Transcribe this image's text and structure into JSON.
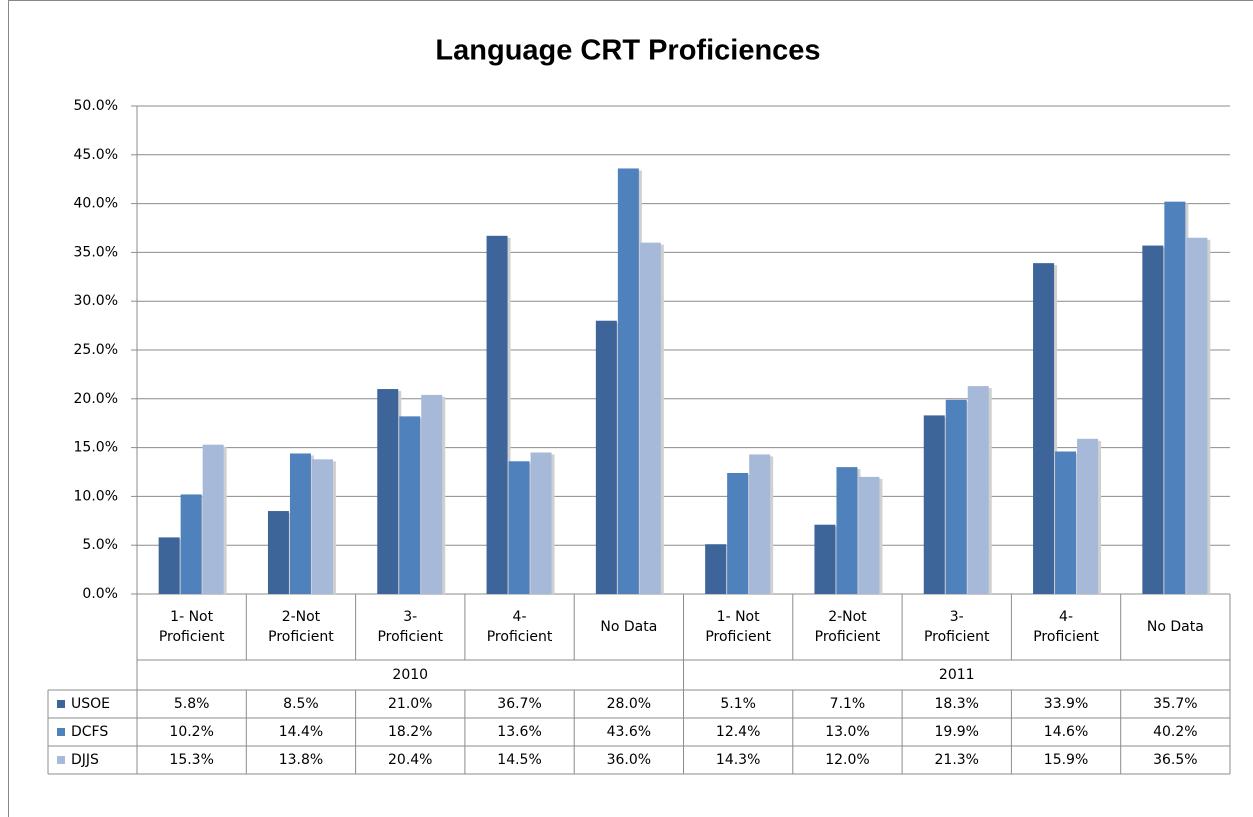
{
  "chart_data": {
    "type": "bar",
    "title": "Language CRT Proficiences",
    "groups": [
      "2010",
      "2011"
    ],
    "categories": [
      "1- Not\nProficient",
      "2-Not\nProficient",
      "3-\nProficient",
      "4-\nProficient",
      "No Data",
      "1- Not\nProficient",
      "2-Not\nProficient",
      "3-\nProficient",
      "4-\nProficient",
      "No Data"
    ],
    "series": [
      {
        "name": "USOE",
        "color": "#3e6599",
        "values": [
          5.8,
          8.5,
          21.0,
          36.7,
          28.0,
          5.1,
          7.1,
          18.3,
          33.9,
          35.7
        ],
        "value_labels": [
          "5.8%",
          "8.5%",
          "21.0%",
          "36.7%",
          "28.0%",
          "5.1%",
          "7.1%",
          "18.3%",
          "33.9%",
          "35.7%"
        ]
      },
      {
        "name": "DCFS",
        "color": "#4f81bd",
        "values": [
          10.2,
          14.4,
          18.2,
          13.6,
          43.6,
          12.4,
          13.0,
          19.9,
          14.6,
          40.2
        ],
        "value_labels": [
          "10.2%",
          "14.4%",
          "18.2%",
          "13.6%",
          "43.6%",
          "12.4%",
          "13.0%",
          "19.9%",
          "14.6%",
          "40.2%"
        ]
      },
      {
        "name": "DJJS",
        "color": "#a7b9d9",
        "values": [
          15.3,
          13.8,
          20.4,
          14.5,
          36.0,
          14.3,
          12.0,
          21.3,
          15.9,
          36.5
        ],
        "value_labels": [
          "15.3%",
          "13.8%",
          "20.4%",
          "14.5%",
          "36.0%",
          "14.3%",
          "12.0%",
          "21.3%",
          "15.9%",
          "36.5%"
        ]
      }
    ],
    "ylim": [
      0,
      50
    ],
    "yticks": [
      {
        "value": 0,
        "label": "0.0%"
      },
      {
        "value": 5,
        "label": "5.0%"
      },
      {
        "value": 10,
        "label": "10.0%"
      },
      {
        "value": 15,
        "label": "15.0%"
      },
      {
        "value": 20,
        "label": "20.0%"
      },
      {
        "value": 25,
        "label": "25.0%"
      },
      {
        "value": 30,
        "label": "30.0%"
      },
      {
        "value": 35,
        "label": "35.0%"
      },
      {
        "value": 40,
        "label": "40.0%"
      },
      {
        "value": 45,
        "label": "45.0%"
      },
      {
        "value": 50,
        "label": "50.0%"
      }
    ],
    "grid": true
  }
}
